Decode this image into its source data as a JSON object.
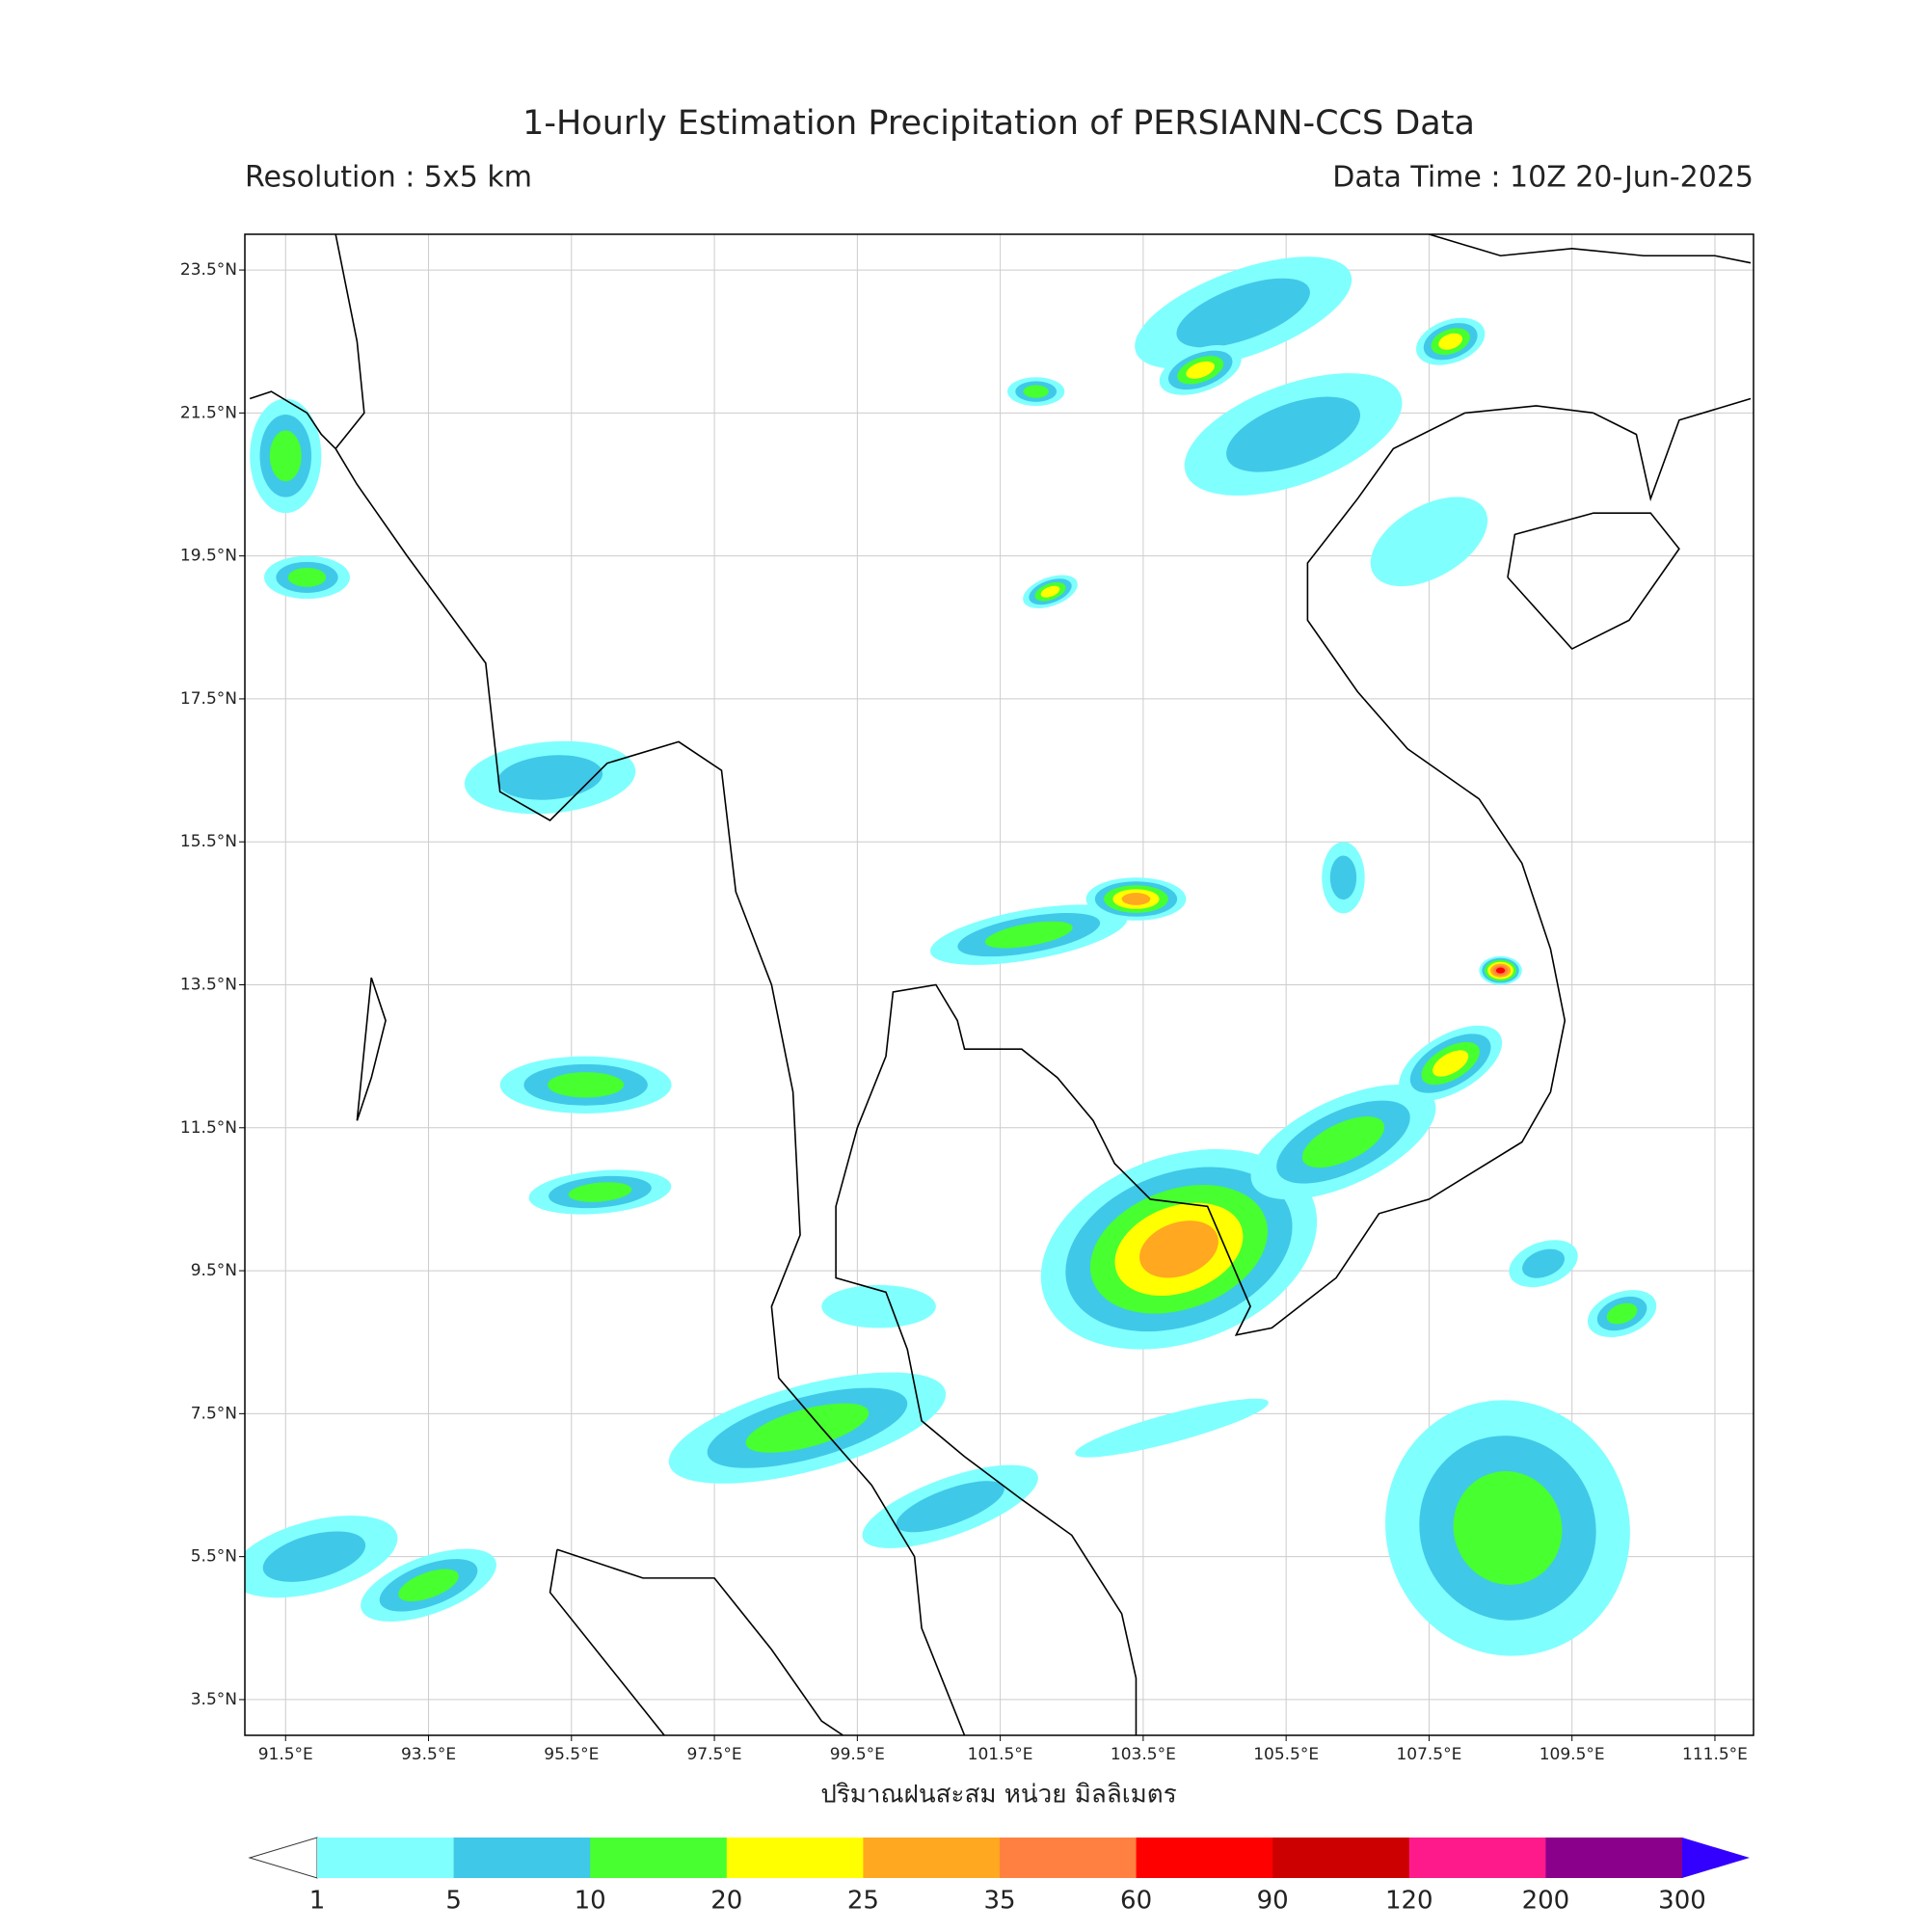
{
  "header": {
    "title": "1-Hourly Estimation Precipitation of PERSIANN-CCS Data",
    "resolution": "Resolution : 5x5 km",
    "data_time": "Data Time : 10Z 20-Jun-2025"
  },
  "map": {
    "xlim": [
      90.93,
      112.04
    ],
    "ylim": [
      3.0,
      24.0
    ],
    "grid": true,
    "x_label": "ปริมาณฝนสะสม หน่วย มิลลิเมตร",
    "xticks": [
      {
        "value": 91.5,
        "label": "91.5°E"
      },
      {
        "value": 93.5,
        "label": "93.5°E"
      },
      {
        "value": 95.5,
        "label": "95.5°E"
      },
      {
        "value": 97.5,
        "label": "97.5°E"
      },
      {
        "value": 99.5,
        "label": "99.5°E"
      },
      {
        "value": 101.5,
        "label": "101.5°E"
      },
      {
        "value": 103.5,
        "label": "103.5°E"
      },
      {
        "value": 105.5,
        "label": "105.5°E"
      },
      {
        "value": 107.5,
        "label": "107.5°E"
      },
      {
        "value": 109.5,
        "label": "109.5°E"
      },
      {
        "value": 111.5,
        "label": "111.5°E"
      }
    ],
    "yticks": [
      {
        "value": 3.5,
        "label": "3.5°N"
      },
      {
        "value": 5.5,
        "label": "5.5°N"
      },
      {
        "value": 7.5,
        "label": "7.5°N"
      },
      {
        "value": 9.5,
        "label": "9.5°N"
      },
      {
        "value": 11.5,
        "label": "11.5°N"
      },
      {
        "value": 13.5,
        "label": "13.5°N"
      },
      {
        "value": 15.5,
        "label": "15.5°N"
      },
      {
        "value": 17.5,
        "label": "17.5°N"
      },
      {
        "value": 19.5,
        "label": "19.5°N"
      },
      {
        "value": 21.5,
        "label": "21.5°N"
      },
      {
        "value": 23.5,
        "label": "23.5°N"
      }
    ]
  },
  "colorbar": {
    "levels": [
      1,
      5,
      10,
      20,
      25,
      35,
      60,
      90,
      120,
      200,
      300
    ],
    "colors": [
      "#80ffff",
      "#40c8e8",
      "#48ff30",
      "#ffff00",
      "#ffa820",
      "#ff8040",
      "#ff0000",
      "#cc0000",
      "#ff1a8c",
      "#8b008b"
    ],
    "under_color": "#ffffff",
    "over_color": "#3300ff"
  }
}
